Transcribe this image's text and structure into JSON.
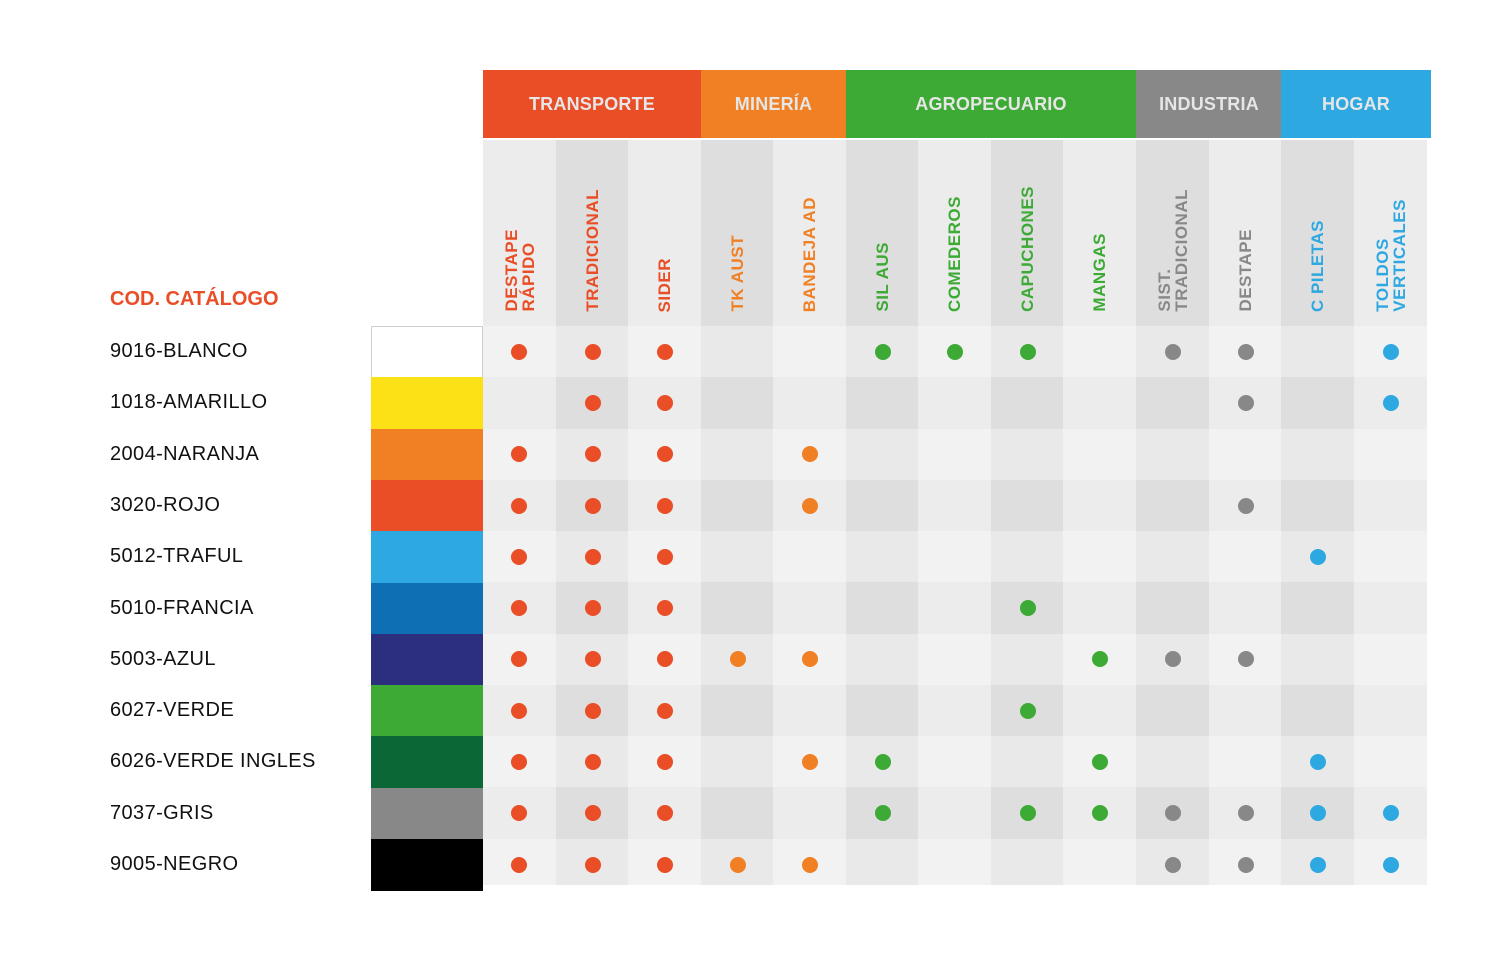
{
  "catalog_header": "COD. CATÁLOGO",
  "groups": [
    {
      "label": "TRANSPORTE",
      "color": "#e94e27"
    },
    {
      "label": "MINERÍA",
      "color": "#f08023"
    },
    {
      "label": "AGROPECUARIO",
      "color": "#3caa35"
    },
    {
      "label": "INDUSTRIA",
      "color": "#888888"
    },
    {
      "label": "HOGAR",
      "color": "#2ea8e0"
    }
  ],
  "columns": [
    {
      "label": "DESTAPE\nRÁPIDO",
      "group": 0
    },
    {
      "label": "TRADICIONAL",
      "group": 0
    },
    {
      "label": "SIDER",
      "group": 0
    },
    {
      "label": "TK AUST",
      "group": 1
    },
    {
      "label": "BANDEJA AD",
      "group": 1
    },
    {
      "label": "SIL AUS",
      "group": 2
    },
    {
      "label": "COMEDEROS",
      "group": 2
    },
    {
      "label": "CAPUCHONES",
      "group": 2
    },
    {
      "label": "MANGAS",
      "group": 2
    },
    {
      "label": "SIST.\nTRADICIONAL",
      "group": 3
    },
    {
      "label": "DESTAPE",
      "group": 3
    },
    {
      "label": "C PILETAS",
      "group": 4
    },
    {
      "label": "TOLDOS\nVERTICALES",
      "group": 4
    }
  ],
  "rows": [
    {
      "label": "9016-BLANCO",
      "color": "#ffffff",
      "marks": [
        1,
        1,
        1,
        0,
        0,
        1,
        1,
        1,
        0,
        1,
        1,
        0,
        1
      ]
    },
    {
      "label": "1018-AMARILLO",
      "color": "#fbe116",
      "marks": [
        0,
        1,
        1,
        0,
        0,
        0,
        0,
        0,
        0,
        0,
        1,
        0,
        1
      ]
    },
    {
      "label": "2004-NARANJA",
      "color": "#f08023",
      "marks": [
        1,
        1,
        1,
        0,
        1,
        0,
        0,
        0,
        0,
        0,
        0,
        0,
        0
      ]
    },
    {
      "label": "3020-ROJO",
      "color": "#e94e27",
      "marks": [
        1,
        1,
        1,
        0,
        1,
        0,
        0,
        0,
        0,
        0,
        1,
        0,
        0
      ]
    },
    {
      "label": "5012-TRAFUL",
      "color": "#2ea8e0",
      "marks": [
        1,
        1,
        1,
        0,
        0,
        0,
        0,
        0,
        0,
        0,
        0,
        1,
        0
      ]
    },
    {
      "label": "5010-FRANCIA",
      "color": "#0f6fb5",
      "marks": [
        1,
        1,
        1,
        0,
        0,
        0,
        0,
        1,
        0,
        0,
        0,
        0,
        0
      ]
    },
    {
      "label": "5003-AZUL",
      "color": "#2c2e7e",
      "marks": [
        1,
        1,
        1,
        1,
        1,
        0,
        0,
        0,
        1,
        1,
        1,
        0,
        0
      ]
    },
    {
      "label": "6027-VERDE",
      "color": "#3caa35",
      "marks": [
        1,
        1,
        1,
        0,
        0,
        0,
        0,
        1,
        0,
        0,
        0,
        0,
        0
      ]
    },
    {
      "label": "6026-VERDE INGLES",
      "color": "#0b6735",
      "marks": [
        1,
        1,
        1,
        0,
        1,
        1,
        0,
        0,
        1,
        0,
        0,
        1,
        0
      ]
    },
    {
      "label": "7037-GRIS",
      "color": "#888888",
      "marks": [
        1,
        1,
        1,
        0,
        0,
        1,
        0,
        1,
        1,
        1,
        1,
        1,
        1
      ]
    },
    {
      "label": "9005-NEGRO",
      "color": "#000000",
      "marks": [
        1,
        1,
        1,
        1,
        1,
        0,
        0,
        0,
        0,
        1,
        1,
        1,
        1
      ]
    }
  ]
}
